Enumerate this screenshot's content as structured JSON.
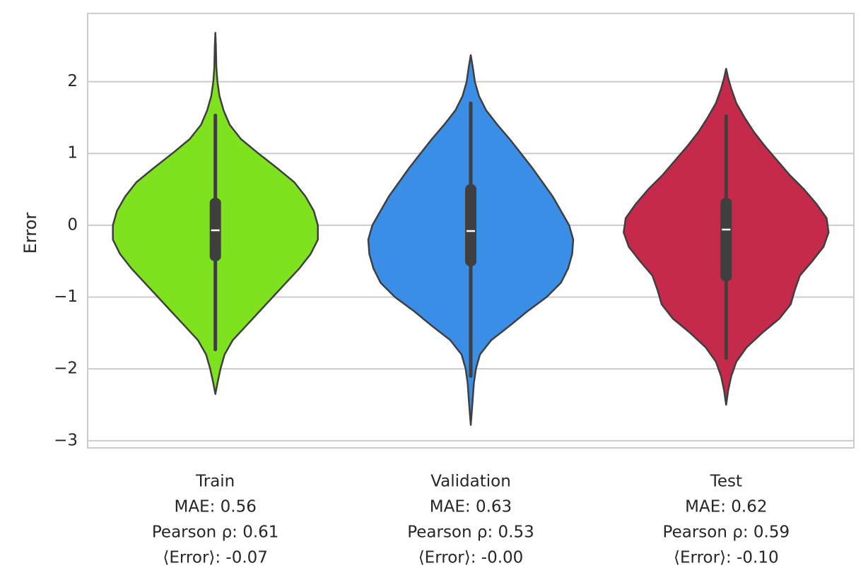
{
  "chart_data": {
    "type": "violin",
    "title": "",
    "xlabel": "",
    "ylabel": "Error",
    "ylim": [
      -3.1,
      2.95
    ],
    "yticks": [
      2,
      1,
      0,
      -1,
      -2,
      -3
    ],
    "ytick_labels": [
      "2",
      "1",
      "0",
      "−1",
      "−2",
      "−3"
    ],
    "grid": "horizontal",
    "legend": "none",
    "categories": [
      {
        "name": "Train",
        "color": "#7FE21F",
        "label_lines": [
          "Train",
          "MAE: 0.56",
          "Pearson ρ: 0.61",
          "⟨Error⟩: -0.07"
        ],
        "median": -0.07,
        "q1": -0.5,
        "q3": 0.38,
        "whisker_low": -1.73,
        "whisker_high": 1.53,
        "density": [
          [
            -2.35,
            0.0
          ],
          [
            -2.2,
            0.02
          ],
          [
            -2.0,
            0.05
          ],
          [
            -1.8,
            0.09
          ],
          [
            -1.6,
            0.17
          ],
          [
            -1.4,
            0.3
          ],
          [
            -1.2,
            0.43
          ],
          [
            -1.0,
            0.56
          ],
          [
            -0.8,
            0.69
          ],
          [
            -0.6,
            0.82
          ],
          [
            -0.4,
            0.93
          ],
          [
            -0.2,
            1.0
          ],
          [
            0.0,
            1.0
          ],
          [
            0.2,
            0.96
          ],
          [
            0.4,
            0.88
          ],
          [
            0.6,
            0.77
          ],
          [
            0.8,
            0.6
          ],
          [
            1.0,
            0.42
          ],
          [
            1.2,
            0.25
          ],
          [
            1.4,
            0.14
          ],
          [
            1.6,
            0.08
          ],
          [
            1.8,
            0.04
          ],
          [
            2.0,
            0.02
          ],
          [
            2.2,
            0.01
          ],
          [
            2.5,
            0.005
          ],
          [
            2.68,
            0.0
          ]
        ]
      },
      {
        "name": "Validation",
        "color": "#3A8EE6",
        "label_lines": [
          "Validation",
          "MAE: 0.63",
          "Pearson ρ: 0.53",
          "⟨Error⟩: -0.00"
        ],
        "median": -0.08,
        "q1": -0.57,
        "q3": 0.57,
        "whisker_low": -2.1,
        "whisker_high": 1.7,
        "density": [
          [
            -2.78,
            0.0
          ],
          [
            -2.5,
            0.015
          ],
          [
            -2.2,
            0.03
          ],
          [
            -2.0,
            0.05
          ],
          [
            -1.8,
            0.09
          ],
          [
            -1.6,
            0.2
          ],
          [
            -1.4,
            0.38
          ],
          [
            -1.2,
            0.55
          ],
          [
            -1.0,
            0.74
          ],
          [
            -0.8,
            0.88
          ],
          [
            -0.6,
            0.95
          ],
          [
            -0.4,
            0.99
          ],
          [
            -0.2,
            1.0
          ],
          [
            0.0,
            0.96
          ],
          [
            0.2,
            0.88
          ],
          [
            0.4,
            0.8
          ],
          [
            0.6,
            0.7
          ],
          [
            0.8,
            0.6
          ],
          [
            1.0,
            0.49
          ],
          [
            1.2,
            0.38
          ],
          [
            1.4,
            0.26
          ],
          [
            1.6,
            0.15
          ],
          [
            1.8,
            0.08
          ],
          [
            2.0,
            0.04
          ],
          [
            2.2,
            0.02
          ],
          [
            2.37,
            0.0
          ]
        ]
      },
      {
        "name": "Test",
        "color": "#C52A4B",
        "label_lines": [
          "Test",
          "MAE: 0.62",
          "Pearson ρ: 0.59",
          "⟨Error⟩: -0.10"
        ],
        "median": -0.06,
        "q1": -0.78,
        "q3": 0.38,
        "whisker_low": -1.85,
        "whisker_high": 1.52,
        "density": [
          [
            -2.5,
            0.0
          ],
          [
            -2.3,
            0.02
          ],
          [
            -2.1,
            0.05
          ],
          [
            -1.9,
            0.1
          ],
          [
            -1.7,
            0.2
          ],
          [
            -1.5,
            0.35
          ],
          [
            -1.3,
            0.52
          ],
          [
            -1.1,
            0.63
          ],
          [
            -0.9,
            0.67
          ],
          [
            -0.7,
            0.72
          ],
          [
            -0.5,
            0.84
          ],
          [
            -0.3,
            0.95
          ],
          [
            -0.1,
            1.0
          ],
          [
            0.1,
            0.98
          ],
          [
            0.3,
            0.88
          ],
          [
            0.5,
            0.76
          ],
          [
            0.7,
            0.62
          ],
          [
            0.9,
            0.5
          ],
          [
            1.1,
            0.38
          ],
          [
            1.3,
            0.27
          ],
          [
            1.5,
            0.18
          ],
          [
            1.7,
            0.1
          ],
          [
            1.9,
            0.05
          ],
          [
            2.05,
            0.02
          ],
          [
            2.18,
            0.0
          ]
        ]
      }
    ]
  }
}
